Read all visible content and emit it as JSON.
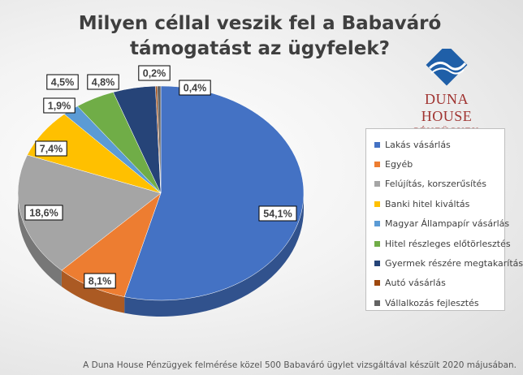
{
  "chart_data": {
    "type": "pie",
    "title": "Milyen céllal veszik fel a Babaváró támogatást az ügyfelek?",
    "categories": [
      "Lakás vásárlás",
      "Egyéb",
      "Felújítás, korszerűsítés",
      "Banki hitel kiváltás",
      "Magyar Állampapír vásárlás",
      "Hitel részleges előtörlesztés",
      "Gyermek részére megtakarítás",
      "Autó vásárlás",
      "Vállalkozás fejlesztés"
    ],
    "values": [
      54.1,
      8.1,
      18.6,
      7.4,
      1.9,
      4.5,
      4.8,
      0.2,
      0.4
    ],
    "labels": [
      "54,1%",
      "8,1%",
      "18,6%",
      "7,4%",
      "1,9%",
      "4,5%",
      "4,8%",
      "0,2%",
      "0,4%"
    ],
    "colors": [
      "#4472c4",
      "#ed7d31",
      "#a5a5a5",
      "#ffc000",
      "#5b9bd5",
      "#70ad47",
      "#264478",
      "#9e480e",
      "#636363"
    ],
    "legend_position": "right",
    "style": "3d"
  },
  "logo": {
    "name": "DUNA HOUSE",
    "subtitle": "PÉNZÜGYEK"
  },
  "footnote": "A Duna House Pénzügyek felmérése közel 500 Babaváró ügylet vizsgáltával készült 2020 májusában."
}
